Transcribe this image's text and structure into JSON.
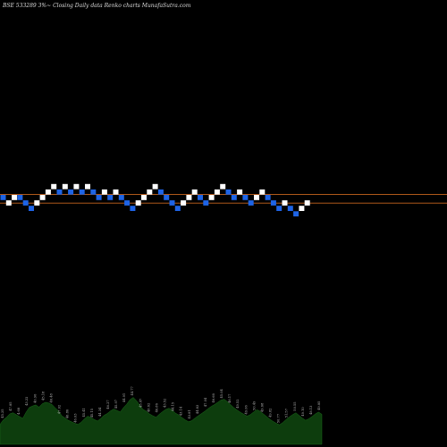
{
  "chart_data": {
    "type": "renko",
    "title": "BSE 533289 3%~  Closing Daily data  Renko  charts MunafaSutra.com",
    "bricks": [
      {
        "level": 24,
        "dir": "down"
      },
      {
        "level": 23,
        "dir": "up"
      },
      {
        "level": 24,
        "dir": "up"
      },
      {
        "level": 24,
        "dir": "down"
      },
      {
        "level": 23,
        "dir": "down"
      },
      {
        "level": 22,
        "dir": "down"
      },
      {
        "level": 23,
        "dir": "up"
      },
      {
        "level": 24,
        "dir": "up"
      },
      {
        "level": 25,
        "dir": "up"
      },
      {
        "level": 26,
        "dir": "up"
      },
      {
        "level": 25,
        "dir": "down"
      },
      {
        "level": 26,
        "dir": "up"
      },
      {
        "level": 25,
        "dir": "down"
      },
      {
        "level": 26,
        "dir": "up"
      },
      {
        "level": 25,
        "dir": "down"
      },
      {
        "level": 26,
        "dir": "up"
      },
      {
        "level": 25,
        "dir": "down"
      },
      {
        "level": 24,
        "dir": "down"
      },
      {
        "level": 25,
        "dir": "up"
      },
      {
        "level": 24,
        "dir": "down"
      },
      {
        "level": 25,
        "dir": "up"
      },
      {
        "level": 24,
        "dir": "down"
      },
      {
        "level": 23,
        "dir": "down"
      },
      {
        "level": 22,
        "dir": "down"
      },
      {
        "level": 23,
        "dir": "up"
      },
      {
        "level": 24,
        "dir": "up"
      },
      {
        "level": 25,
        "dir": "up"
      },
      {
        "level": 26,
        "dir": "up"
      },
      {
        "level": 25,
        "dir": "down"
      },
      {
        "level": 24,
        "dir": "down"
      },
      {
        "level": 23,
        "dir": "down"
      },
      {
        "level": 22,
        "dir": "down"
      },
      {
        "level": 23,
        "dir": "up"
      },
      {
        "level": 24,
        "dir": "up"
      },
      {
        "level": 25,
        "dir": "up"
      },
      {
        "level": 24,
        "dir": "down"
      },
      {
        "level": 23,
        "dir": "down"
      },
      {
        "level": 24,
        "dir": "up"
      },
      {
        "level": 25,
        "dir": "up"
      },
      {
        "level": 26,
        "dir": "up"
      },
      {
        "level": 25,
        "dir": "down"
      },
      {
        "level": 24,
        "dir": "down"
      },
      {
        "level": 25,
        "dir": "up"
      },
      {
        "level": 24,
        "dir": "down"
      },
      {
        "level": 23,
        "dir": "down"
      },
      {
        "level": 24,
        "dir": "up"
      },
      {
        "level": 25,
        "dir": "up"
      },
      {
        "level": 24,
        "dir": "down"
      },
      {
        "level": 23,
        "dir": "down"
      },
      {
        "level": 22,
        "dir": "down"
      },
      {
        "level": 23,
        "dir": "up"
      },
      {
        "level": 22,
        "dir": "down"
      },
      {
        "level": 21,
        "dir": "down"
      },
      {
        "level": 22,
        "dir": "up"
      },
      {
        "level": 23,
        "dir": "up"
      }
    ],
    "reference_lines": [
      {
        "level": 24.6,
        "color": "#c8651e"
      },
      {
        "level": 23.0,
        "color": "#c8651e"
      }
    ],
    "volume": {
      "values": [
        5.3,
        6.5,
        7.2,
        8.1,
        8.4,
        7.9,
        7.4,
        6.9,
        8.5,
        9.8,
        10.2,
        10.5,
        9.9,
        10.8,
        11.2,
        11.0,
        10.6,
        9.7,
        8.9,
        7.6,
        7.0,
        6.4,
        6.0,
        5.6,
        5.3,
        5.9,
        6.8,
        7.5,
        7.1,
        6.6,
        6.2,
        6.9,
        7.7,
        8.2,
        8.9,
        9.4,
        9.0,
        8.6,
        9.8,
        10.7,
        11.9,
        12.5,
        11.6,
        10.4,
        9.3,
        8.8,
        8.1,
        7.6,
        7.2,
        8.0,
        8.7,
        9.3,
        9.6,
        9.1,
        8.3,
        7.8,
        7.1,
        6.5,
        6.0,
        6.3,
        7.0,
        7.6,
        8.2,
        8.8,
        9.5,
        10.1,
        10.6,
        11.2,
        11.8,
        12.0,
        11.3,
        10.5,
        9.7,
        9.1,
        8.5,
        8.0,
        7.5,
        7.9,
        8.6,
        9.2,
        8.8,
        8.1,
        7.4,
        6.7,
        6.1,
        5.6,
        5.2,
        5.8,
        6.6,
        7.3,
        7.9,
        8.4,
        7.7,
        7.0,
        6.4,
        6.8,
        7.4,
        8.1,
        8.6,
        8.0
      ],
      "labels": [
        "45.25",
        "47.85",
        "4.68",
        "43.22",
        "40.96",
        "45.18",
        "46.48",
        "47.02",
        "46.86",
        "46.03",
        "45.41",
        "45.15",
        "44.34",
        "46.27",
        "45.97",
        "44.91",
        "44.77",
        "45.47",
        "46.62",
        "46.86",
        "43.52",
        "44.15",
        "43.14",
        "43.81",
        "44.83",
        "47.04",
        "46.68",
        "45.04",
        "46.17",
        "49.52",
        "49.06",
        "50.49",
        "49.68",
        "49.82",
        "50.77",
        "51.57",
        "50.55",
        "49.10",
        "48.13",
        "49.85"
      ]
    }
  }
}
